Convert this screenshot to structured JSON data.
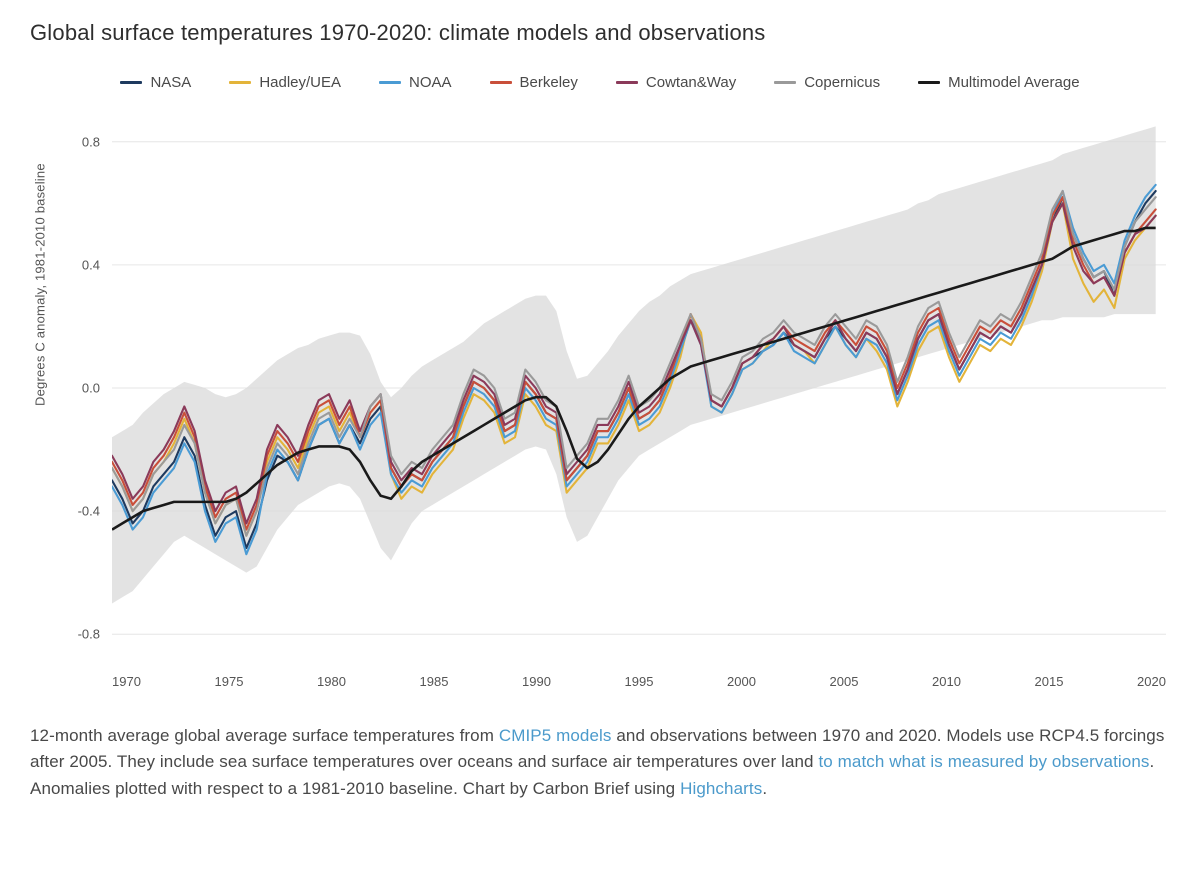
{
  "title": "Global surface temperatures 1970-2020: climate models and observations",
  "y_axis_label": "Degrees C anomaly, 1981-2010 baseline",
  "legend": [
    {
      "label": "NASA",
      "color": "#1e3a5f"
    },
    {
      "label": "Hadley/UEA",
      "color": "#e3b43a"
    },
    {
      "label": "NOAA",
      "color": "#4a9bd4"
    },
    {
      "label": "Berkeley",
      "color": "#c94f3a"
    },
    {
      "label": "Cowtan&Way",
      "color": "#8b3a5a"
    },
    {
      "label": "Copernicus",
      "color": "#9a9a9a"
    },
    {
      "label": "Multimodel Average",
      "color": "#1a1a1a"
    }
  ],
  "chart": {
    "type": "line",
    "xlim": [
      1970,
      2021
    ],
    "ylim": [
      -0.9,
      0.9
    ],
    "x_ticks": [
      1970,
      1975,
      1980,
      1985,
      1990,
      1995,
      2000,
      2005,
      2010,
      2015,
      2020
    ],
    "y_ticks": [
      -0.8,
      -0.4,
      0.0,
      0.4,
      0.8
    ],
    "grid_color": "#e6e6e6",
    "background": "#ffffff",
    "band_fill": "#d9d9d9",
    "band_opacity": 0.75,
    "line_width": 2.1,
    "multimodel_width": 2.6,
    "years": [
      1970,
      1970.5,
      1971,
      1971.5,
      1972,
      1972.5,
      1973,
      1973.5,
      1974,
      1974.5,
      1975,
      1975.5,
      1976,
      1976.5,
      1977,
      1977.5,
      1978,
      1978.5,
      1979,
      1979.5,
      1980,
      1980.5,
      1981,
      1981.5,
      1982,
      1982.5,
      1983,
      1983.5,
      1984,
      1984.5,
      1985,
      1985.5,
      1986,
      1986.5,
      1987,
      1987.5,
      1988,
      1988.5,
      1989,
      1989.5,
      1990,
      1990.5,
      1991,
      1991.5,
      1992,
      1992.5,
      1993,
      1993.5,
      1994,
      1994.5,
      1995,
      1995.5,
      1996,
      1996.5,
      1997,
      1997.5,
      1998,
      1998.5,
      1999,
      1999.5,
      2000,
      2000.5,
      2001,
      2001.5,
      2002,
      2002.5,
      2003,
      2003.5,
      2004,
      2004.5,
      2005,
      2005.5,
      2006,
      2006.5,
      2007,
      2007.5,
      2008,
      2008.5,
      2009,
      2009.5,
      2010,
      2010.5,
      2011,
      2011.5,
      2012,
      2012.5,
      2013,
      2013.5,
      2014,
      2014.5,
      2015,
      2015.5,
      2016,
      2016.5,
      2017,
      2017.5,
      2018,
      2018.5,
      2019,
      2019.5,
      2020,
      2020.5
    ],
    "band_upper": [
      -0.16,
      -0.14,
      -0.12,
      -0.08,
      -0.05,
      -0.02,
      0.0,
      0.02,
      0.01,
      0.0,
      -0.02,
      -0.03,
      -0.02,
      0.0,
      0.03,
      0.06,
      0.09,
      0.11,
      0.13,
      0.14,
      0.16,
      0.17,
      0.18,
      0.18,
      0.17,
      0.11,
      0.02,
      -0.03,
      0.0,
      0.04,
      0.07,
      0.09,
      0.11,
      0.13,
      0.15,
      0.18,
      0.21,
      0.23,
      0.25,
      0.27,
      0.29,
      0.3,
      0.3,
      0.25,
      0.12,
      0.03,
      0.04,
      0.08,
      0.12,
      0.17,
      0.21,
      0.25,
      0.28,
      0.3,
      0.33,
      0.35,
      0.37,
      0.38,
      0.39,
      0.4,
      0.41,
      0.42,
      0.43,
      0.44,
      0.45,
      0.46,
      0.47,
      0.48,
      0.49,
      0.5,
      0.51,
      0.52,
      0.53,
      0.54,
      0.55,
      0.56,
      0.57,
      0.58,
      0.6,
      0.61,
      0.63,
      0.64,
      0.65,
      0.66,
      0.67,
      0.68,
      0.69,
      0.7,
      0.71,
      0.72,
      0.73,
      0.74,
      0.76,
      0.77,
      0.78,
      0.79,
      0.8,
      0.81,
      0.82,
      0.83,
      0.84,
      0.85
    ],
    "band_lower": [
      -0.7,
      -0.68,
      -0.66,
      -0.62,
      -0.58,
      -0.54,
      -0.5,
      -0.48,
      -0.5,
      -0.52,
      -0.54,
      -0.56,
      -0.58,
      -0.6,
      -0.58,
      -0.52,
      -0.46,
      -0.42,
      -0.38,
      -0.36,
      -0.34,
      -0.32,
      -0.31,
      -0.32,
      -0.36,
      -0.44,
      -0.52,
      -0.56,
      -0.5,
      -0.44,
      -0.4,
      -0.38,
      -0.36,
      -0.34,
      -0.32,
      -0.3,
      -0.28,
      -0.26,
      -0.24,
      -0.22,
      -0.2,
      -0.19,
      -0.2,
      -0.28,
      -0.42,
      -0.5,
      -0.48,
      -0.42,
      -0.36,
      -0.3,
      -0.26,
      -0.22,
      -0.2,
      -0.18,
      -0.16,
      -0.14,
      -0.12,
      -0.11,
      -0.1,
      -0.09,
      -0.08,
      -0.07,
      -0.06,
      -0.05,
      -0.04,
      -0.03,
      -0.02,
      -0.01,
      0.0,
      0.01,
      0.02,
      0.03,
      0.04,
      0.05,
      0.06,
      0.07,
      0.08,
      0.09,
      0.1,
      0.11,
      0.12,
      0.13,
      0.14,
      0.15,
      0.16,
      0.17,
      0.18,
      0.19,
      0.2,
      0.21,
      0.22,
      0.22,
      0.23,
      0.23,
      0.23,
      0.23,
      0.23,
      0.24,
      0.24,
      0.24,
      0.24,
      0.24
    ],
    "multimodel": [
      -0.46,
      -0.44,
      -0.42,
      -0.4,
      -0.39,
      -0.38,
      -0.37,
      -0.37,
      -0.37,
      -0.37,
      -0.37,
      -0.37,
      -0.36,
      -0.34,
      -0.31,
      -0.28,
      -0.25,
      -0.23,
      -0.21,
      -0.2,
      -0.19,
      -0.19,
      -0.19,
      -0.2,
      -0.24,
      -0.3,
      -0.35,
      -0.36,
      -0.32,
      -0.27,
      -0.24,
      -0.22,
      -0.2,
      -0.18,
      -0.16,
      -0.14,
      -0.12,
      -0.1,
      -0.08,
      -0.06,
      -0.04,
      -0.03,
      -0.03,
      -0.06,
      -0.14,
      -0.23,
      -0.26,
      -0.24,
      -0.2,
      -0.15,
      -0.1,
      -0.06,
      -0.03,
      0.0,
      0.03,
      0.05,
      0.07,
      0.08,
      0.09,
      0.1,
      0.11,
      0.12,
      0.13,
      0.14,
      0.15,
      0.16,
      0.17,
      0.18,
      0.19,
      0.2,
      0.21,
      0.22,
      0.23,
      0.24,
      0.25,
      0.26,
      0.27,
      0.28,
      0.29,
      0.3,
      0.31,
      0.32,
      0.33,
      0.34,
      0.35,
      0.36,
      0.37,
      0.38,
      0.39,
      0.4,
      0.41,
      0.42,
      0.44,
      0.46,
      0.47,
      0.48,
      0.49,
      0.5,
      0.51,
      0.51,
      0.52,
      0.52
    ],
    "series": {
      "NASA": [
        -0.3,
        -0.36,
        -0.44,
        -0.4,
        -0.32,
        -0.28,
        -0.24,
        -0.16,
        -0.22,
        -0.38,
        -0.48,
        -0.42,
        -0.4,
        -0.52,
        -0.44,
        -0.3,
        -0.22,
        -0.24,
        -0.3,
        -0.2,
        -0.12,
        -0.1,
        -0.18,
        -0.12,
        -0.18,
        -0.1,
        -0.06,
        -0.26,
        -0.32,
        -0.28,
        -0.3,
        -0.24,
        -0.2,
        -0.16,
        -0.06,
        0.02,
        0.0,
        -0.04,
        -0.14,
        -0.12,
        0.02,
        -0.02,
        -0.08,
        -0.1,
        -0.3,
        -0.26,
        -0.22,
        -0.14,
        -0.14,
        -0.08,
        0.0,
        -0.1,
        -0.08,
        -0.04,
        0.04,
        0.12,
        0.22,
        0.16,
        -0.04,
        -0.06,
        0.0,
        0.08,
        0.1,
        0.12,
        0.14,
        0.18,
        0.14,
        0.12,
        0.1,
        0.16,
        0.2,
        0.16,
        0.12,
        0.18,
        0.16,
        0.1,
        -0.02,
        0.06,
        0.16,
        0.22,
        0.24,
        0.14,
        0.06,
        0.12,
        0.18,
        0.16,
        0.2,
        0.18,
        0.24,
        0.32,
        0.4,
        0.54,
        0.62,
        0.5,
        0.42,
        0.36,
        0.38,
        0.3,
        0.46,
        0.54,
        0.6,
        0.64
      ],
      "Hadley": [
        -0.26,
        -0.32,
        -0.4,
        -0.36,
        -0.28,
        -0.24,
        -0.18,
        -0.1,
        -0.18,
        -0.34,
        -0.44,
        -0.38,
        -0.36,
        -0.48,
        -0.4,
        -0.24,
        -0.16,
        -0.2,
        -0.26,
        -0.16,
        -0.08,
        -0.06,
        -0.14,
        -0.08,
        -0.16,
        -0.08,
        -0.04,
        -0.28,
        -0.36,
        -0.32,
        -0.34,
        -0.28,
        -0.24,
        -0.2,
        -0.1,
        -0.02,
        -0.04,
        -0.08,
        -0.18,
        -0.16,
        -0.02,
        -0.06,
        -0.12,
        -0.14,
        -0.34,
        -0.3,
        -0.26,
        -0.18,
        -0.18,
        -0.12,
        -0.04,
        -0.14,
        -0.12,
        -0.08,
        0.0,
        0.1,
        0.24,
        0.18,
        -0.06,
        -0.08,
        -0.02,
        0.06,
        0.08,
        0.12,
        0.16,
        0.2,
        0.14,
        0.12,
        0.08,
        0.14,
        0.2,
        0.14,
        0.1,
        0.16,
        0.12,
        0.06,
        -0.06,
        0.02,
        0.12,
        0.18,
        0.2,
        0.1,
        0.02,
        0.08,
        0.14,
        0.12,
        0.16,
        0.14,
        0.2,
        0.28,
        0.38,
        0.54,
        0.6,
        0.42,
        0.34,
        0.28,
        0.32,
        0.26,
        0.42,
        0.48,
        0.52,
        0.56
      ],
      "NOAA": [
        -0.32,
        -0.38,
        -0.46,
        -0.42,
        -0.34,
        -0.3,
        -0.26,
        -0.18,
        -0.24,
        -0.4,
        -0.5,
        -0.44,
        -0.42,
        -0.54,
        -0.46,
        -0.28,
        -0.2,
        -0.24,
        -0.3,
        -0.2,
        -0.12,
        -0.1,
        -0.18,
        -0.12,
        -0.2,
        -0.12,
        -0.08,
        -0.28,
        -0.34,
        -0.3,
        -0.32,
        -0.26,
        -0.22,
        -0.18,
        -0.08,
        0.0,
        -0.02,
        -0.06,
        -0.16,
        -0.14,
        0.0,
        -0.04,
        -0.1,
        -0.12,
        -0.32,
        -0.28,
        -0.24,
        -0.16,
        -0.16,
        -0.1,
        -0.02,
        -0.12,
        -0.1,
        -0.06,
        0.02,
        0.12,
        0.22,
        0.14,
        -0.06,
        -0.08,
        -0.02,
        0.06,
        0.08,
        0.12,
        0.14,
        0.18,
        0.12,
        0.1,
        0.08,
        0.14,
        0.2,
        0.14,
        0.1,
        0.16,
        0.14,
        0.08,
        -0.04,
        0.04,
        0.14,
        0.2,
        0.22,
        0.12,
        0.04,
        0.1,
        0.16,
        0.14,
        0.18,
        0.16,
        0.22,
        0.3,
        0.4,
        0.56,
        0.64,
        0.52,
        0.44,
        0.38,
        0.4,
        0.34,
        0.48,
        0.56,
        0.62,
        0.66
      ],
      "Berkeley": [
        -0.24,
        -0.3,
        -0.38,
        -0.34,
        -0.26,
        -0.22,
        -0.16,
        -0.08,
        -0.16,
        -0.32,
        -0.42,
        -0.36,
        -0.34,
        -0.46,
        -0.38,
        -0.22,
        -0.14,
        -0.18,
        -0.24,
        -0.14,
        -0.06,
        -0.04,
        -0.12,
        -0.06,
        -0.16,
        -0.08,
        -0.04,
        -0.26,
        -0.32,
        -0.28,
        -0.3,
        -0.24,
        -0.2,
        -0.16,
        -0.06,
        0.02,
        0.0,
        -0.04,
        -0.14,
        -0.12,
        0.02,
        -0.02,
        -0.08,
        -0.1,
        -0.3,
        -0.26,
        -0.22,
        -0.14,
        -0.14,
        -0.08,
        0.0,
        -0.1,
        -0.08,
        -0.04,
        0.04,
        0.14,
        0.24,
        0.16,
        -0.04,
        -0.06,
        0.0,
        0.08,
        0.1,
        0.14,
        0.16,
        0.2,
        0.16,
        0.14,
        0.12,
        0.18,
        0.22,
        0.18,
        0.14,
        0.2,
        0.18,
        0.12,
        0.0,
        0.08,
        0.18,
        0.24,
        0.26,
        0.16,
        0.08,
        0.14,
        0.2,
        0.18,
        0.22,
        0.2,
        0.26,
        0.34,
        0.42,
        0.56,
        0.62,
        0.48,
        0.4,
        0.34,
        0.36,
        0.3,
        0.44,
        0.5,
        0.54,
        0.58
      ],
      "Cowtan": [
        -0.22,
        -0.28,
        -0.36,
        -0.32,
        -0.24,
        -0.2,
        -0.14,
        -0.06,
        -0.14,
        -0.3,
        -0.4,
        -0.34,
        -0.32,
        -0.44,
        -0.36,
        -0.2,
        -0.12,
        -0.16,
        -0.22,
        -0.12,
        -0.04,
        -0.02,
        -0.1,
        -0.04,
        -0.14,
        -0.06,
        -0.02,
        -0.24,
        -0.3,
        -0.26,
        -0.28,
        -0.22,
        -0.18,
        -0.14,
        -0.04,
        0.04,
        0.02,
        -0.02,
        -0.12,
        -0.1,
        0.04,
        0.0,
        -0.06,
        -0.08,
        -0.28,
        -0.24,
        -0.2,
        -0.12,
        -0.12,
        -0.06,
        0.02,
        -0.08,
        -0.06,
        -0.02,
        0.06,
        0.14,
        0.22,
        0.14,
        -0.04,
        -0.06,
        0.0,
        0.08,
        0.1,
        0.14,
        0.16,
        0.2,
        0.14,
        0.12,
        0.1,
        0.16,
        0.22,
        0.16,
        0.12,
        0.18,
        0.16,
        0.1,
        -0.02,
        0.06,
        0.16,
        0.22,
        0.24,
        0.14,
        0.06,
        0.12,
        0.18,
        0.16,
        0.2,
        0.18,
        0.24,
        0.32,
        0.4,
        0.54,
        0.6,
        0.46,
        0.38,
        0.34,
        0.36,
        0.3,
        0.44,
        0.5,
        0.52,
        0.56
      ],
      "Copernicus": [
        -0.26,
        -0.32,
        -0.4,
        -0.36,
        -0.28,
        -0.24,
        -0.2,
        -0.12,
        -0.18,
        -0.34,
        -0.44,
        -0.38,
        -0.36,
        -0.48,
        -0.4,
        -0.26,
        -0.18,
        -0.22,
        -0.28,
        -0.18,
        -0.1,
        -0.08,
        -0.16,
        -0.1,
        -0.16,
        -0.06,
        -0.02,
        -0.22,
        -0.28,
        -0.24,
        -0.26,
        -0.2,
        -0.16,
        -0.12,
        -0.02,
        0.06,
        0.04,
        0.0,
        -0.1,
        -0.08,
        0.06,
        0.02,
        -0.04,
        -0.06,
        -0.26,
        -0.22,
        -0.18,
        -0.1,
        -0.1,
        -0.04,
        0.04,
        -0.06,
        -0.04,
        0.0,
        0.08,
        0.16,
        0.24,
        0.16,
        -0.02,
        -0.04,
        0.02,
        0.1,
        0.12,
        0.16,
        0.18,
        0.22,
        0.18,
        0.16,
        0.14,
        0.2,
        0.24,
        0.2,
        0.16,
        0.22,
        0.2,
        0.14,
        0.02,
        0.1,
        0.2,
        0.26,
        0.28,
        0.18,
        0.1,
        0.16,
        0.22,
        0.2,
        0.24,
        0.22,
        0.28,
        0.36,
        0.44,
        0.58,
        0.64,
        0.5,
        0.42,
        0.36,
        0.38,
        0.32,
        0.46,
        0.54,
        0.58,
        0.62
      ]
    }
  },
  "caption": {
    "parts": [
      {
        "text": "12-month average global average surface temperatures from "
      },
      {
        "text": "CMIP5 models",
        "link": true
      },
      {
        "text": " and observations between 1970 and 2020. Models use RCP4.5 forcings after 2005. They include sea surface temperatures over oceans and surface air temperatures over land "
      },
      {
        "text": "to match what is measured by observations",
        "link": true
      },
      {
        "text": ". Anomalies plotted with respect to a 1981-2010 baseline. Chart by Carbon Brief using "
      },
      {
        "text": "Highcharts",
        "link": true
      },
      {
        "text": "."
      }
    ],
    "link_color": "#4b9acb"
  }
}
